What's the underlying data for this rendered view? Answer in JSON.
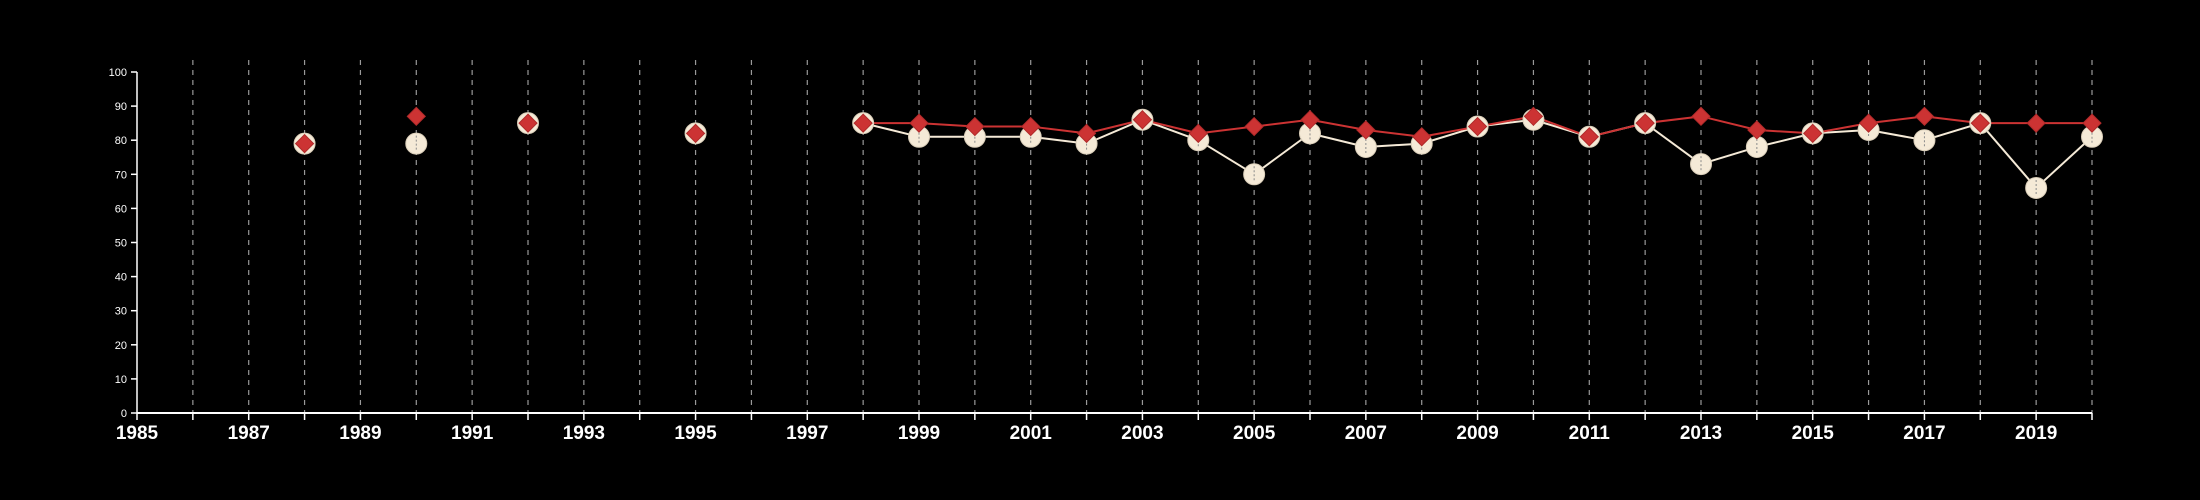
{
  "chart_data": {
    "type": "line",
    "title": "",
    "xlabel": "",
    "ylabel": "",
    "xlim": [
      1985,
      2020
    ],
    "ylim": [
      0,
      100
    ],
    "y_ticks": [
      0,
      10,
      20,
      30,
      40,
      50,
      60,
      70,
      80,
      90,
      100
    ],
    "x_tick_labels": [
      "1985",
      "1987",
      "1989",
      "1991",
      "1993",
      "1995",
      "1997",
      "1999",
      "2001",
      "2003",
      "2005",
      "2007",
      "2009",
      "2011",
      "2013",
      "2015",
      "2017",
      "2019"
    ],
    "grid": {
      "vertical": "dashed",
      "horizontal": false
    },
    "background": "#000000",
    "series": [
      {
        "marker": "circle",
        "color": "#f5ead7",
        "x": [
          1988,
          1990,
          1992,
          1995,
          1998,
          1999,
          2000,
          2001,
          2002,
          2003,
          2004,
          2005,
          2006,
          2007,
          2008,
          2009,
          2010,
          2011,
          2012,
          2013,
          2014,
          2015,
          2016,
          2017,
          2018,
          2019,
          2020
        ],
        "values": [
          79,
          79,
          85,
          82,
          85,
          81,
          81,
          81,
          79,
          86,
          80,
          70,
          82,
          78,
          79,
          84,
          86,
          81,
          85,
          73,
          78,
          82,
          83,
          80,
          85,
          66,
          81
        ]
      },
      {
        "marker": "diamond",
        "color": "#cc3333",
        "x": [
          1988,
          1990,
          1992,
          1995,
          1998,
          1999,
          2000,
          2001,
          2002,
          2003,
          2004,
          2005,
          2006,
          2007,
          2008,
          2009,
          2010,
          2011,
          2012,
          2013,
          2014,
          2015,
          2016,
          2017,
          2018,
          2019,
          2020
        ],
        "values": [
          79,
          87,
          85,
          82,
          85,
          85,
          84,
          84,
          82,
          86,
          82,
          84,
          86,
          83,
          81,
          84,
          87,
          81,
          85,
          87,
          83,
          82,
          85,
          87,
          85,
          85,
          85
        ]
      }
    ]
  }
}
